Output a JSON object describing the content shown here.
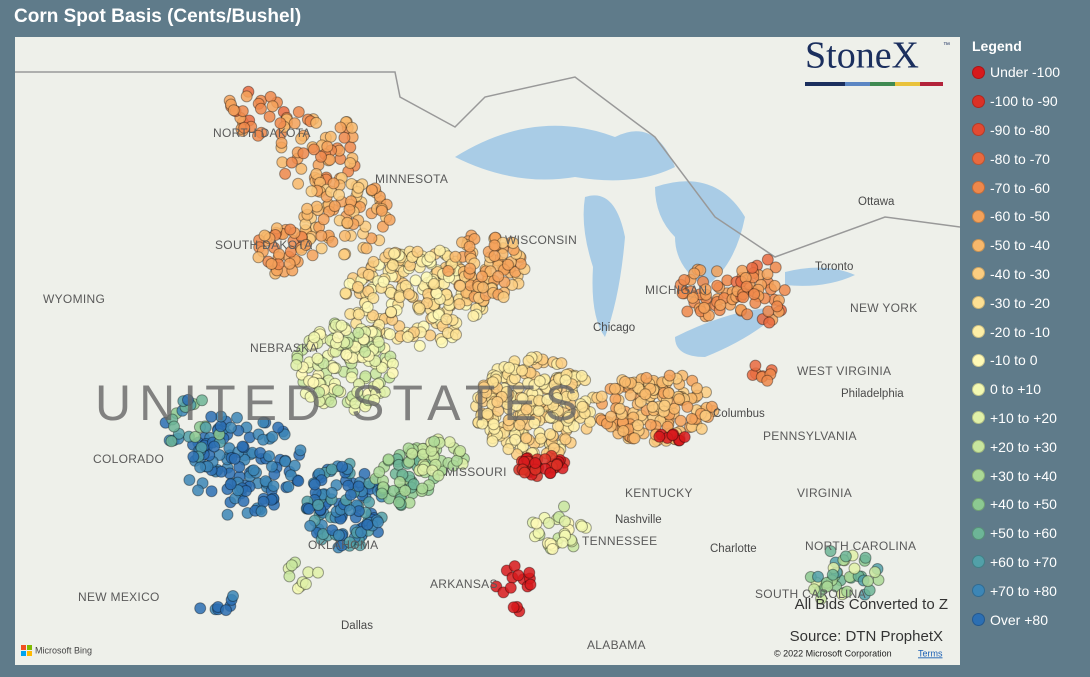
{
  "header": {
    "title": "Corn Spot Basis (Cents/Bushel)"
  },
  "logo": {
    "text": "StoneX",
    "tm": "™"
  },
  "legend": {
    "title": "Legend",
    "items": [
      {
        "label": "Under -100",
        "color": "#d7191c"
      },
      {
        "label": "-100 to -90",
        "color": "#dc3126"
      },
      {
        "label": "-90 to -80",
        "color": "#e24a32"
      },
      {
        "label": "-80 to -70",
        "color": "#e96a3f"
      },
      {
        "label": "-70 to -60",
        "color": "#ef884b"
      },
      {
        "label": "-60 to -50",
        "color": "#f4a25a"
      },
      {
        "label": "-50 to -40",
        "color": "#f8b86b"
      },
      {
        "label": "-40 to -30",
        "color": "#fbcd80"
      },
      {
        "label": "-30 to -20",
        "color": "#fde093"
      },
      {
        "label": "-20 to -10",
        "color": "#feefa6"
      },
      {
        "label": "-10 to 0",
        "color": "#fffab6"
      },
      {
        "label": "0 to +10",
        "color": "#f3f9b2"
      },
      {
        "label": "+10 to +20",
        "color": "#e1f1a8"
      },
      {
        "label": "+20 to +30",
        "color": "#c8e69e"
      },
      {
        "label": "+30 to +40",
        "color": "#abd996"
      },
      {
        "label": "+40 to +50",
        "color": "#8cc991"
      },
      {
        "label": "+50 to +60",
        "color": "#6db597"
      },
      {
        "label": "+60 to +70",
        "color": "#52a0a8"
      },
      {
        "label": "+70 to +80",
        "color": "#3c86b6"
      },
      {
        "label": "Over +80",
        "color": "#2c6fb3"
      }
    ]
  },
  "map": {
    "labels": [
      "UNITED STATES",
      "NORTH DAKOTA",
      "MINNESOTA",
      "SOUTH DAKOTA",
      "WISCONSIN",
      "MICHIGAN",
      "WYOMING",
      "NEBRASKA",
      "COLORADO",
      "MISSOURI",
      "OKLAHOMA",
      "ARKANSAS",
      "NEW MEXICO",
      "ALABAMA",
      "KENTUCKY",
      "TENNESSEE",
      "PENNSYLVANIA",
      "VIRGINIA",
      "WEST VIRGINIA",
      "NEW YORK",
      "NORTH CAROLINA",
      "SOUTH CAROLINA",
      "Chicago",
      "Ottawa",
      "Toronto",
      "Philadelphia",
      "Columbus",
      "Nashville",
      "Dallas",
      "Charlotte"
    ]
  },
  "notes": [
    "All Bids Converted to Z",
    "Source: DTN ProphetX"
  ],
  "footer": {
    "bing": "Microsoft Bing",
    "copyright": "© 2022 Microsoft Corporation",
    "terms": "Terms"
  }
}
